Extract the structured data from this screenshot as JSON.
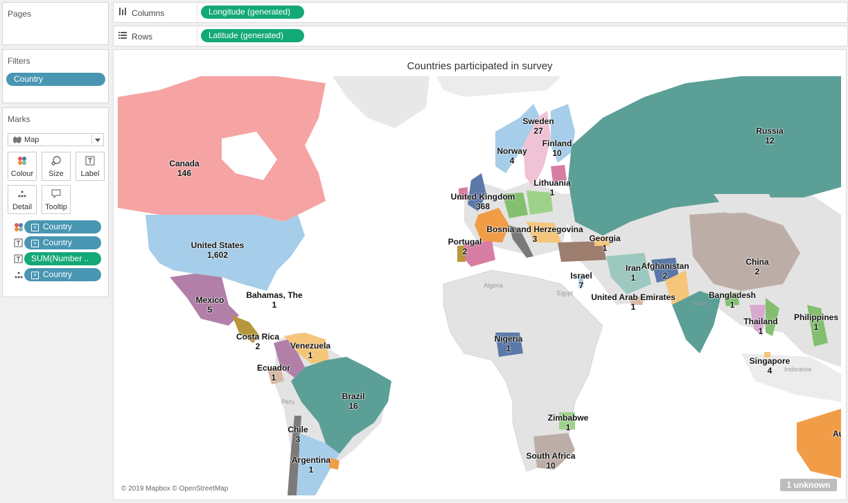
{
  "left_pane": {
    "pages_title": "Pages",
    "filters_title": "Filters",
    "filter_pill": "Country",
    "marks_title": "Marks",
    "mark_type": "Map",
    "mark_buttons": [
      "Colour",
      "Size",
      "Label",
      "Detail",
      "Tooltip"
    ],
    "mark_fields": [
      "Country",
      "Country",
      "SUM(Number ..",
      "Country"
    ]
  },
  "shelves": {
    "columns_label": "Columns",
    "columns_pill": "Longitude (generated)",
    "rows_label": "Rows",
    "rows_pill": "Latitude (generated)"
  },
  "viz": {
    "title": "Countries participated in survey",
    "attribution": "© 2019 Mapbox © OpenStreetMap",
    "unknown_badge": "1 unknown",
    "base_labels": [
      "Algeria",
      "Egypt",
      "India",
      "Indonesia",
      "Peru"
    ],
    "countries": [
      {
        "name": "Canada",
        "value": "146",
        "color": "#f6a3a3"
      },
      {
        "name": "United States",
        "value": "1,602",
        "color": "#a6cde9"
      },
      {
        "name": "Mexico",
        "value": "5",
        "color": "#b27fa9"
      },
      {
        "name": "Bahamas, The",
        "value": "1",
        "color": "#f6a3a3"
      },
      {
        "name": "Costa Rica",
        "value": "2",
        "color": "#b7973b"
      },
      {
        "name": "Venezuela",
        "value": "1",
        "color": "#f5c57a"
      },
      {
        "name": "Ecuador",
        "value": "1",
        "color": "#d9b9a6"
      },
      {
        "name": "Brazil",
        "value": "16",
        "color": "#5b9f97"
      },
      {
        "name": "Chile",
        "value": "3",
        "color": "#7c7a78"
      },
      {
        "name": "Argentina",
        "value": "1",
        "color": "#a6cde9"
      },
      {
        "name": "Sweden",
        "value": "27",
        "color": "#f0c2d6"
      },
      {
        "name": "Norway",
        "value": "4",
        "color": "#a6cde9"
      },
      {
        "name": "Finland",
        "value": "10",
        "color": "#a6cde9"
      },
      {
        "name": "Lithuania",
        "value": "1",
        "color": "#d77ca2"
      },
      {
        "name": "United Kingdom",
        "value": "368",
        "color": "#5a78a8"
      },
      {
        "name": "Bosnia and Herzegovina",
        "value": "3",
        "color": "#f5c57a"
      },
      {
        "name": "Portugal",
        "value": "2",
        "color": "#b7973b"
      },
      {
        "name": "Georgia",
        "value": "1",
        "color": "#f5c57a"
      },
      {
        "name": "Russia",
        "value": "12",
        "color": "#5b9f97"
      },
      {
        "name": "Israel",
        "value": "7",
        "color": "#a6cde9"
      },
      {
        "name": "United Arab Emirates",
        "value": "1",
        "color": "#d9b9a6"
      },
      {
        "name": "Iran",
        "value": "1",
        "color": "#9cc8bf"
      },
      {
        "name": "Afghanistan",
        "value": "2",
        "color": "#5a78a8"
      },
      {
        "name": "China",
        "value": "2",
        "color": "#bcaea7"
      },
      {
        "name": "Bangladesh",
        "value": "1",
        "color": "#83bf6f"
      },
      {
        "name": "Thailand",
        "value": "1",
        "color": "#d9a9d0"
      },
      {
        "name": "Philippines",
        "value": "1",
        "color": "#83bf6f"
      },
      {
        "name": "Singapore",
        "value": "4",
        "color": "#f5c57a"
      },
      {
        "name": "Nigeria",
        "value": "1",
        "color": "#5a78a8"
      },
      {
        "name": "Zimbabwe",
        "value": "1",
        "color": "#9ed28a"
      },
      {
        "name": "South Africa",
        "value": "10",
        "color": "#bcaea7"
      },
      {
        "name": "Au",
        "value": "",
        "color": "#f19d48"
      }
    ]
  }
}
